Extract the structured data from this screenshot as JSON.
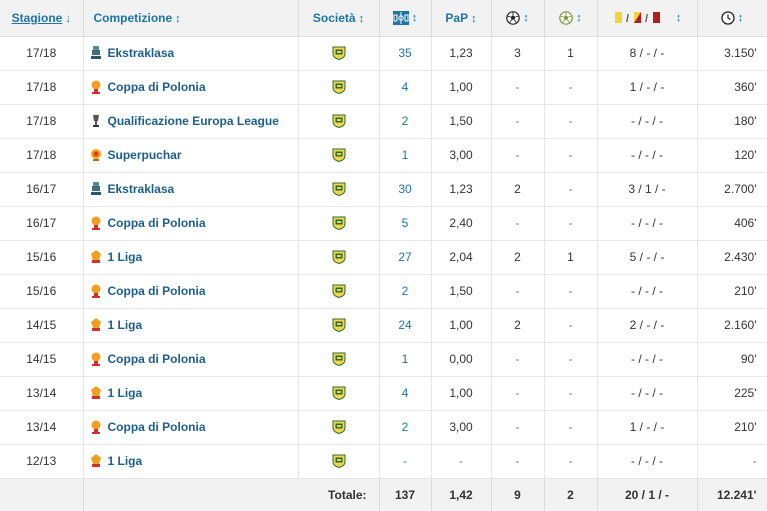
{
  "header": {
    "season": "Stagione",
    "competition": "Competizione",
    "club": "Società",
    "ppm": "PaP"
  },
  "icons": {
    "sort_active": "arrow-down-icon",
    "sort_neutral": "sort-arrows-icon",
    "appearances": "pitch-icon",
    "goals": "football-icon",
    "assists": "assist-ball-icon",
    "cards": "cards-icon",
    "minutes": "clock-icon",
    "club": "club-crest-icon"
  },
  "colors": {
    "link": "#1d75a3",
    "competition_link": "#1d5f8a",
    "header_bg": "#f2f2f2",
    "yellow_card": "#f2d43b",
    "red_card": "#b01e1e"
  },
  "rows": [
    {
      "season": "17/18",
      "competition": "Ekstraklasa",
      "icon": "ekstraklasa",
      "apps": "35",
      "ppm": "1,23",
      "goals": "3",
      "assists": "1",
      "cards": "8 / - / -",
      "minutes": "3.150'"
    },
    {
      "season": "17/18",
      "competition": "Coppa di Polonia",
      "icon": "cup",
      "apps": "4",
      "ppm": "1,00",
      "goals": "-",
      "assists": "-",
      "cards": "1 / - / -",
      "minutes": "360'"
    },
    {
      "season": "17/18",
      "competition": "Qualificazione Europa League",
      "icon": "europa",
      "apps": "2",
      "ppm": "1,50",
      "goals": "-",
      "assists": "-",
      "cards": "- / - / -",
      "minutes": "180'"
    },
    {
      "season": "17/18",
      "competition": "Superpuchar",
      "icon": "super",
      "apps": "1",
      "ppm": "3,00",
      "goals": "-",
      "assists": "-",
      "cards": "- / - / -",
      "minutes": "120'"
    },
    {
      "season": "16/17",
      "competition": "Ekstraklasa",
      "icon": "ekstraklasa",
      "apps": "30",
      "ppm": "1,23",
      "goals": "2",
      "assists": "-",
      "cards": "3 / 1 / -",
      "minutes": "2.700'"
    },
    {
      "season": "16/17",
      "competition": "Coppa di Polonia",
      "icon": "cup",
      "apps": "5",
      "ppm": "2,40",
      "goals": "-",
      "assists": "-",
      "cards": "- / - / -",
      "minutes": "406'"
    },
    {
      "season": "15/16",
      "competition": "1 Liga",
      "icon": "liga",
      "apps": "27",
      "ppm": "2,04",
      "goals": "2",
      "assists": "1",
      "cards": "5 / - / -",
      "minutes": "2.430'"
    },
    {
      "season": "15/16",
      "competition": "Coppa di Polonia",
      "icon": "cup",
      "apps": "2",
      "ppm": "1,50",
      "goals": "-",
      "assists": "-",
      "cards": "- / - / -",
      "minutes": "210'"
    },
    {
      "season": "14/15",
      "competition": "1 Liga",
      "icon": "liga",
      "apps": "24",
      "ppm": "1,00",
      "goals": "2",
      "assists": "-",
      "cards": "2 / - / -",
      "minutes": "2.160'"
    },
    {
      "season": "14/15",
      "competition": "Coppa di Polonia",
      "icon": "cup",
      "apps": "1",
      "ppm": "0,00",
      "goals": "-",
      "assists": "-",
      "cards": "- / - / -",
      "minutes": "90'"
    },
    {
      "season": "13/14",
      "competition": "1 Liga",
      "icon": "liga",
      "apps": "4",
      "ppm": "1,00",
      "goals": "-",
      "assists": "-",
      "cards": "- / - / -",
      "minutes": "225'"
    },
    {
      "season": "13/14",
      "competition": "Coppa di Polonia",
      "icon": "cup",
      "apps": "2",
      "ppm": "3,00",
      "goals": "-",
      "assists": "-",
      "cards": "1 / - / -",
      "minutes": "210'"
    },
    {
      "season": "12/13",
      "competition": "1 Liga",
      "icon": "liga",
      "apps": "-",
      "ppm": "-",
      "goals": "-",
      "assists": "-",
      "cards": "- / - / -",
      "minutes": "-"
    }
  ],
  "totals": {
    "label": "Totale:",
    "apps": "137",
    "ppm": "1,42",
    "goals": "9",
    "assists": "2",
    "cards": "20 / 1 / -",
    "minutes": "12.241'"
  }
}
